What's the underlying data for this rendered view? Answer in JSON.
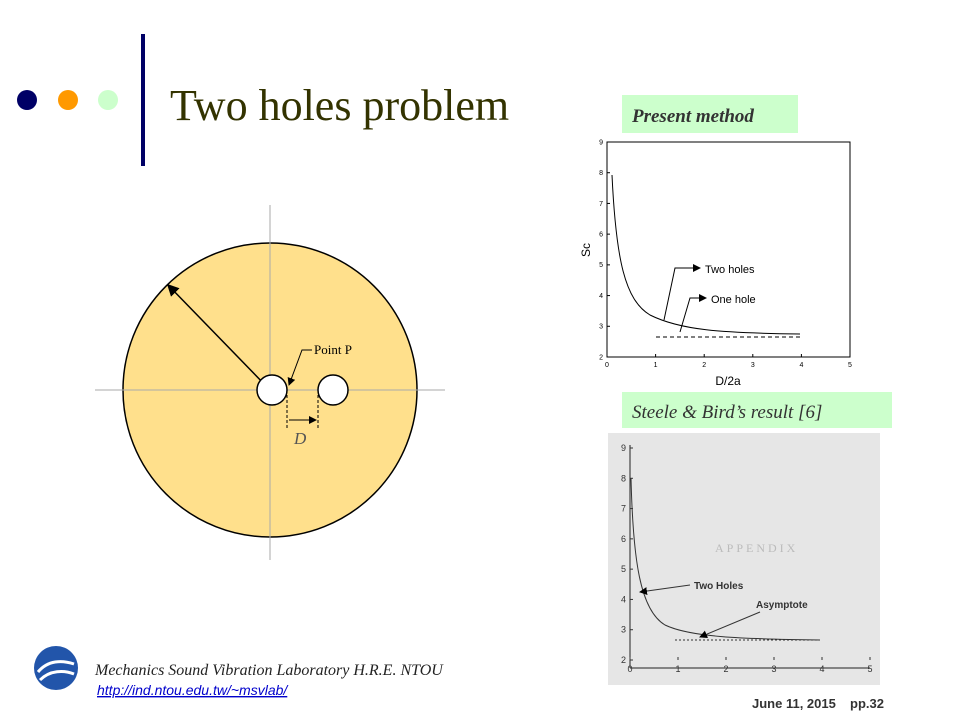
{
  "title": "Two holes problem",
  "diagram": {
    "point_label": "Point P",
    "dimension_label": "D"
  },
  "present_method": {
    "label": "Present method",
    "x_label": "D/2a",
    "y_label": "Sc",
    "xticks": [
      0,
      1,
      2,
      3,
      4,
      5
    ],
    "yticks": [
      2,
      3,
      4,
      5,
      6,
      7,
      8,
      9
    ],
    "annotations": [
      "Two holes",
      "One hole"
    ]
  },
  "steele_bird": {
    "label": "Steele & Bird’s result [6]",
    "heading": "APPENDIX",
    "xticks": [
      0,
      1,
      2,
      3,
      4,
      5
    ],
    "yticks": [
      2,
      3,
      4,
      5,
      6,
      7,
      8,
      9
    ],
    "annotations": [
      "Two Holes",
      "Asymptote"
    ]
  },
  "footer": {
    "lab": "Mechanics Sound Vibration Laboratory H.R.E. NTOU",
    "url": "http://ind.ntou.edu.tw/~msvlab/",
    "date": "June 11, 2015",
    "page": "pp.32"
  }
}
